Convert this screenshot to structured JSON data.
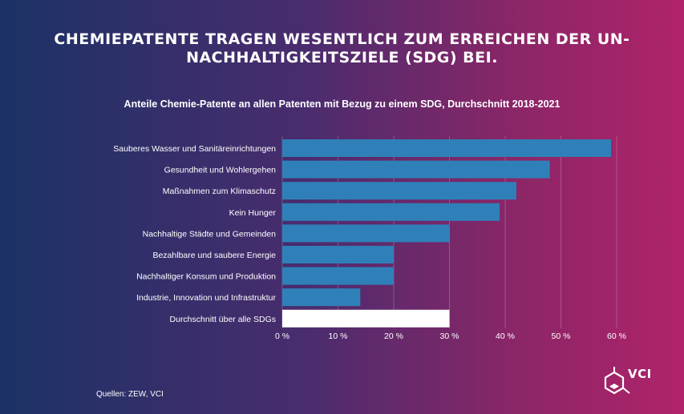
{
  "headline": "CHEMIEPATENTE TRAGEN WESENTLICH ZUM ERREICHEN DER UN-NACHHALTIGKEITSZIELE (SDG) BEI.",
  "subtitle": "Anteile Chemie-Patente an allen Patenten mit Bezug zu einem SDG, Durchschnitt 2018-2021",
  "source": "Quellen:  ZEW, VCI",
  "logo_text": "VCI",
  "colors": {
    "bar": "#2f80b8",
    "highlight": "#ffffff",
    "gradient_left": "#1b3266",
    "gradient_right": "#b0236a"
  },
  "chart_data": {
    "type": "bar",
    "orientation": "horizontal",
    "title": "Anteile Chemie-Patente an allen Patenten mit Bezug zu einem SDG, Durchschnitt 2018-2021",
    "categories": [
      "Sauberes Wasser und Sanitäreinrichtungen",
      "Gesundheit und Wohlergehen",
      "Maßnahmen zum Klimaschutz",
      "Kein Hunger",
      "Nachhaltige Städte und Gemeinden",
      "Bezahlbare und saubere Energie",
      "Nachhaltiger Konsum und Produktion",
      "Industrie, Innovation und Infrastruktur",
      "Durchschnitt über alle SDGs"
    ],
    "values": [
      59,
      48,
      42,
      39,
      30,
      20,
      20,
      14,
      30
    ],
    "highlight_index": 8,
    "xlim": [
      0,
      60
    ],
    "xticks": [
      0,
      10,
      20,
      30,
      40,
      50,
      60
    ],
    "tick_labels": [
      "0 %",
      "10 %",
      "20 %",
      "30 %",
      "40 %",
      "50 %",
      "60 %"
    ],
    "unit": "%",
    "grid": true,
    "legend": false
  }
}
